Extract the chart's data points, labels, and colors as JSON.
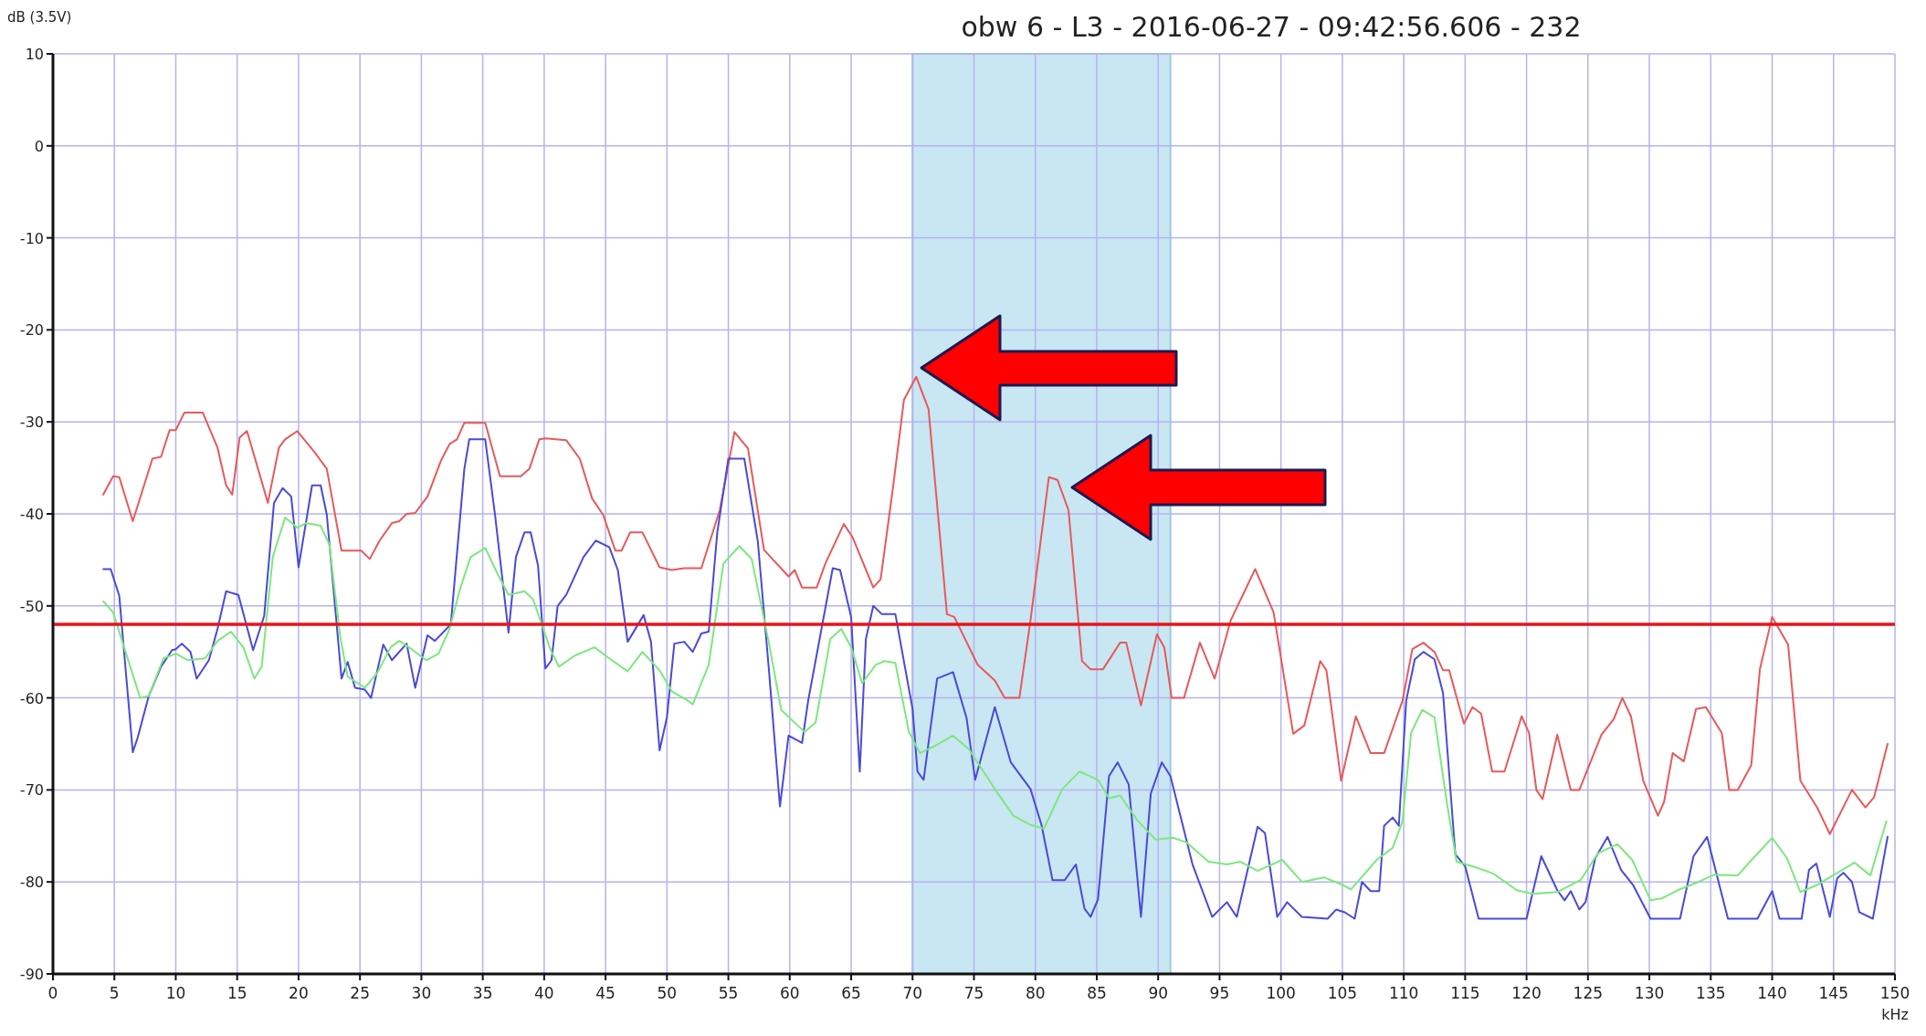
{
  "chart_data": {
    "type": "line",
    "title": "obw 6 - L3 - 2016-06-27  - 09:42:56.606 - 232",
    "xlabel": "kHz",
    "ylabel": "dB (3.5V)",
    "xlim": [
      0,
      150
    ],
    "xticks": [
      0,
      5,
      10,
      15,
      20,
      25,
      30,
      35,
      40,
      45,
      50,
      55,
      60,
      65,
      70,
      75,
      80,
      85,
      90,
      95,
      100,
      105,
      110,
      115,
      120,
      125,
      130,
      135,
      140,
      145,
      150
    ],
    "ylim": [
      -90,
      10
    ],
    "yticks": [
      -90,
      -80,
      -70,
      -60,
      -50,
      -40,
      -30,
      -20,
      -10,
      0,
      10
    ],
    "grid": true,
    "marker": "none",
    "line_style": "solid",
    "ref_lines": [
      {
        "axis": "y",
        "value": -52,
        "color": "#e8141a"
      }
    ],
    "bands": [
      {
        "axis": "x",
        "from": 70,
        "to": 91,
        "color": "#c9e6f3"
      }
    ],
    "series": [
      {
        "color": "#e8595a",
        "x": [
          4.1,
          4.9,
          5.4,
          6.5,
          8.1,
          8.8,
          9.5,
          10,
          10.7,
          12.2,
          13.4,
          14.1,
          14.6,
          15.2,
          15.8,
          16.7,
          17.5,
          18.4,
          18.9,
          19.9,
          21.3,
          22.3,
          23.5,
          25.1,
          25.8,
          26.6,
          27.6,
          28.2,
          28.8,
          29.5,
          30.5,
          31.6,
          32.3,
          32.9,
          33.5,
          35.2,
          36.4,
          38.1,
          38.8,
          39.6,
          40.1,
          41.8,
          42.9,
          43.9,
          44.8,
          45.8,
          46.3,
          47,
          48,
          49.4,
          50.4,
          51.4,
          52.8,
          54.3,
          55.5,
          56.6,
          57.9,
          59.9,
          60.4,
          61,
          62.2,
          62.9,
          64.4,
          65.1,
          66.8,
          67.4,
          68.4,
          69.3,
          70.3,
          71.3,
          72.8,
          73.4,
          75.3,
          76.7,
          77.5,
          78.7,
          79.6,
          81.1,
          81.8,
          82.7,
          83.8,
          84.5,
          85.5,
          86.9,
          87.4,
          88.6,
          89.9,
          90.5,
          91.1,
          92.1,
          93.4,
          94.6,
          95.9,
          97.9,
          99.4,
          101,
          101.9,
          103.2,
          103.7,
          104.9,
          106.1,
          107.3,
          108.4,
          109.9,
          110.7,
          111.6,
          112.5,
          113.2,
          113.7,
          114.9,
          115.6,
          116.3,
          117.2,
          118.2,
          119.6,
          120.2,
          120.8,
          121.3,
          122.5,
          123.6,
          124.3,
          126.1,
          127.1,
          127.8,
          128.5,
          129.5,
          130.7,
          131.2,
          131.9,
          132.8,
          133.8,
          134.6,
          135.9,
          136.5,
          137.2,
          138.3,
          139,
          140,
          141.3,
          142.3,
          143.7,
          144.7,
          146.5,
          147.6,
          148.3,
          149.4
        ],
        "values": [
          -37.9,
          -35.9,
          -36,
          -40.8,
          -34,
          -33.8,
          -30.9,
          -30.9,
          -29,
          -29,
          -32.8,
          -36.9,
          -37.9,
          -31.7,
          -31,
          -35.1,
          -38.8,
          -32.8,
          -31.9,
          -31,
          -33.3,
          -35.1,
          -44,
          -44,
          -44.9,
          -42.9,
          -41,
          -40.8,
          -40,
          -39.9,
          -38.1,
          -34.2,
          -32.4,
          -31.9,
          -30.1,
          -30.1,
          -35.9,
          -35.9,
          -35.1,
          -31.9,
          -31.8,
          -32,
          -34,
          -38.3,
          -40.1,
          -44,
          -44,
          -42,
          -42,
          -45.8,
          -46.1,
          -45.9,
          -45.9,
          -39.6,
          -31.1,
          -32.9,
          -43.9,
          -46.8,
          -46.1,
          -48,
          -48,
          -45.4,
          -41.1,
          -42.5,
          -48,
          -47.1,
          -37.2,
          -27.6,
          -25.1,
          -28.6,
          -50.9,
          -51.2,
          -56.4,
          -58.1,
          -60,
          -60,
          -51.6,
          -36,
          -36.3,
          -39.6,
          -56,
          -56.9,
          -56.9,
          -54,
          -54,
          -60.8,
          -53.1,
          -54.5,
          -60,
          -60,
          -54,
          -57.9,
          -51.6,
          -46,
          -50.7,
          -63.9,
          -63,
          -56,
          -57,
          -69,
          -62,
          -66,
          -66,
          -60.3,
          -54.7,
          -54,
          -55,
          -57,
          -57,
          -62.8,
          -61,
          -61.7,
          -68,
          -68,
          -62,
          -63.8,
          -70,
          -71,
          -64,
          -70,
          -70,
          -64,
          -62.3,
          -60,
          -62,
          -69,
          -72.8,
          -71.3,
          -66,
          -66.9,
          -61.2,
          -61,
          -63.8,
          -70,
          -70,
          -67.3,
          -56.9,
          -51.2,
          -54.2,
          -69,
          -72,
          -74.8,
          -70,
          -71.9,
          -70.8,
          -65
        ]
      },
      {
        "color": "#4a4ad8",
        "x": [
          4.1,
          4.7,
          5.4,
          6.5,
          6.9,
          7.8,
          8.8,
          9.7,
          10,
          10.5,
          11.2,
          11.7,
          12.7,
          13.4,
          14.1,
          15.1,
          16.3,
          17.2,
          18,
          18.7,
          19.4,
          20,
          21.1,
          21.8,
          22.3,
          23.5,
          24,
          24.6,
          25.4,
          25.9,
          26.9,
          27.6,
          28.8,
          29.5,
          30.5,
          31.1,
          32.4,
          33.5,
          33.9,
          35.2,
          36,
          37.1,
          37.7,
          38.4,
          38.9,
          39.5,
          40.1,
          40.6,
          41.1,
          41.8,
          43.2,
          44.2,
          45.3,
          46,
          46.8,
          48.1,
          48.7,
          49.4,
          50,
          50.6,
          51.4,
          52.1,
          52.8,
          53.4,
          54.1,
          55,
          56.3,
          57.4,
          58.3,
          59.2,
          59.9,
          61,
          61.5,
          63.5,
          64.1,
          65,
          65.7,
          66.2,
          66.8,
          67.5,
          68.6,
          70,
          70.4,
          70.9,
          72,
          73.3,
          74.4,
          75.1,
          76.7,
          78,
          79.6,
          80.5,
          81.4,
          82.4,
          83.3,
          84,
          84.5,
          85.1,
          86,
          86.7,
          87.6,
          88.6,
          89.4,
          90.3,
          91,
          92.8,
          94.4,
          95.6,
          96.4,
          98.1,
          98.7,
          99.7,
          100.5,
          101.7,
          103.8,
          104.5,
          105.2,
          106,
          106.6,
          107.3,
          108,
          108.4,
          109.1,
          109.6,
          110.2,
          110.9,
          111.6,
          112.5,
          113.2,
          114.2,
          115,
          116.1,
          120,
          121.2,
          122.5,
          123.1,
          123.6,
          124.3,
          124.8,
          125.6,
          126.6,
          127.7,
          128.7,
          130.1,
          132.5,
          133.6,
          134.7,
          136.4,
          138.8,
          140,
          140.6,
          142.4,
          143,
          143.6,
          144.7,
          145.3,
          145.8,
          146.5,
          147.1,
          148.2,
          149.4
        ],
        "values": [
          -46,
          -46,
          -48.9,
          -65.9,
          -64.3,
          -59.8,
          -56.6,
          -54.8,
          -54.7,
          -54.1,
          -55,
          -57.9,
          -55.9,
          -52.5,
          -48.4,
          -48.8,
          -54.8,
          -51.1,
          -38.8,
          -37.2,
          -38.1,
          -45.8,
          -36.9,
          -36.9,
          -40.1,
          -57.9,
          -56.1,
          -58.9,
          -59.1,
          -60,
          -54.2,
          -55.9,
          -54.1,
          -58.9,
          -53.2,
          -53.8,
          -52,
          -35.1,
          -31.9,
          -31.9,
          -40.1,
          -52.9,
          -44.7,
          -42,
          -42,
          -45.6,
          -56.8,
          -55.9,
          -50,
          -48.8,
          -44.7,
          -42.9,
          -43.6,
          -46.1,
          -53.9,
          -51,
          -53.9,
          -65.7,
          -62.1,
          -54.1,
          -53.9,
          -55,
          -53,
          -52.8,
          -42,
          -34,
          -34,
          -43,
          -56.9,
          -71.8,
          -64.1,
          -64.9,
          -60.3,
          -45.9,
          -46.1,
          -51.2,
          -68,
          -53.6,
          -50,
          -50.9,
          -50.9,
          -61.2,
          -68,
          -68.9,
          -57.9,
          -57.2,
          -62.2,
          -68.9,
          -61,
          -67,
          -69.9,
          -73.8,
          -79.8,
          -79.8,
          -78.1,
          -82.9,
          -83.8,
          -81.9,
          -68.5,
          -67,
          -69.4,
          -83.8,
          -70.4,
          -67,
          -68.5,
          -78.1,
          -83.8,
          -82.2,
          -83.8,
          -74,
          -74.7,
          -83.8,
          -82.2,
          -83.8,
          -84,
          -83,
          -83.3,
          -84,
          -80,
          -81,
          -81,
          -73.9,
          -73,
          -73.9,
          -60.3,
          -55.8,
          -55,
          -55.8,
          -59.5,
          -77,
          -78.3,
          -84,
          -84,
          -77.2,
          -80.9,
          -82,
          -81,
          -83,
          -82.2,
          -77.4,
          -75.1,
          -78.7,
          -80.4,
          -84,
          -84,
          -77.2,
          -75.1,
          -84,
          -84,
          -81,
          -84,
          -84,
          -78.7,
          -78,
          -83.8,
          -79.6,
          -79,
          -80,
          -83.3,
          -84,
          -75.1
        ]
      },
      {
        "color": "#7de87d",
        "x": [
          4.1,
          4.9,
          5.7,
          7.1,
          7.8,
          9,
          10,
          11,
          12.4,
          13.4,
          14.5,
          15.5,
          16.4,
          17,
          17.9,
          18.9,
          19.9,
          20.6,
          21.8,
          22.5,
          23.4,
          24,
          25.4,
          26.4,
          27.5,
          28.2,
          29.2,
          30.4,
          31.4,
          32.3,
          33.1,
          34,
          35.2,
          36.2,
          37.1,
          38.4,
          39.1,
          40.5,
          41.2,
          42.5,
          44.1,
          45.3,
          46.8,
          48,
          49.4,
          50.4,
          51.6,
          52.1,
          53.4,
          54.6,
          55.9,
          56.9,
          58.3,
          59.3,
          61.2,
          62.1,
          63.3,
          64.2,
          65,
          65.9,
          67,
          67.7,
          68.6,
          69.7,
          70.6,
          71.7,
          73.3,
          74.6,
          76.7,
          78.2,
          79.6,
          80.7,
          82.2,
          83.6,
          85.1,
          86,
          86.9,
          88.3,
          89.8,
          91.2,
          92.3,
          94.1,
          95.6,
          96.7,
          98.1,
          100.1,
          101.7,
          103.5,
          104.8,
          105.7,
          106.5,
          107.8,
          109.1,
          109.9,
          110.6,
          111.5,
          112.5,
          113.5,
          114.3,
          115.6,
          117.3,
          119.2,
          120.5,
          122.5,
          124.4,
          125.8,
          127.4,
          128.6,
          130.1,
          131,
          132.3,
          134,
          135.3,
          137.2,
          138.2,
          140,
          141.2,
          142.3,
          143.7,
          145.2,
          146.7,
          148,
          149.3
        ],
        "values": [
          -49.5,
          -50.7,
          -54.1,
          -60,
          -59.8,
          -55.7,
          -55.2,
          -55.9,
          -55.7,
          -53.8,
          -52.8,
          -54.5,
          -57.9,
          -56.6,
          -44.7,
          -40.4,
          -41.5,
          -41,
          -41.3,
          -43.3,
          -53.4,
          -57.7,
          -58.9,
          -57.3,
          -54.5,
          -53.8,
          -54.7,
          -55.9,
          -55.2,
          -52.5,
          -48.4,
          -44.7,
          -43.7,
          -46.5,
          -48.8,
          -48.4,
          -49.3,
          -54.7,
          -56.6,
          -55.4,
          -54.5,
          -55.7,
          -57.1,
          -55,
          -57,
          -59.3,
          -60.2,
          -60.7,
          -56.4,
          -45.4,
          -43.5,
          -44.9,
          -54,
          -61.3,
          -63.7,
          -62.7,
          -53.6,
          -52.5,
          -54.5,
          -58.4,
          -56.4,
          -56,
          -56.2,
          -63.7,
          -66,
          -65.3,
          -64.1,
          -65.6,
          -69.9,
          -72.8,
          -73.8,
          -74.2,
          -69.9,
          -68,
          -68.9,
          -70.9,
          -70.6,
          -73.3,
          -75.4,
          -75.2,
          -75.7,
          -77.8,
          -78.1,
          -77.8,
          -78.8,
          -77.6,
          -80,
          -79.5,
          -80.2,
          -80.8,
          -79.6,
          -77.6,
          -76.3,
          -73.4,
          -63.8,
          -61.3,
          -62.1,
          -71.3,
          -77.8,
          -78.3,
          -79.1,
          -80.9,
          -81.3,
          -81.1,
          -79.8,
          -76.9,
          -75.9,
          -77.6,
          -82,
          -81.8,
          -80.9,
          -80,
          -79.2,
          -79.3,
          -77.8,
          -75.2,
          -77.4,
          -81.1,
          -80.3,
          -79.1,
          -77.9,
          -79.3,
          -73.4
        ]
      }
    ]
  }
}
